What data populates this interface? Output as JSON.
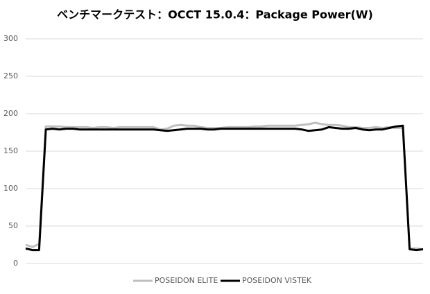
{
  "chart_data": {
    "type": "line",
    "title": "ベンチマークテスト：OCCT 15.0.4：Package Power(W)",
    "categories": [
      null,
      null,
      null,
      null,
      null,
      null,
      null,
      null,
      null,
      null,
      null,
      null,
      null,
      null,
      null,
      null,
      null,
      null,
      null,
      null,
      null,
      null,
      null,
      null,
      null,
      null,
      null,
      null,
      null,
      null,
      null,
      null,
      null,
      null,
      null,
      null,
      null,
      null,
      null,
      null,
      null,
      null,
      null,
      null,
      null,
      null,
      null,
      null,
      null,
      null,
      null,
      null,
      null,
      null,
      null,
      null,
      null,
      null,
      null,
      null
    ],
    "series": [
      {
        "name": "POSEIDON ELITE",
        "color": "#bfbfbf",
        "values": [
          25,
          22,
          26,
          183,
          183,
          183,
          182,
          182,
          182,
          182,
          181,
          182,
          182,
          181,
          182,
          182,
          182,
          182,
          182,
          182,
          179,
          180,
          184,
          185,
          184,
          184,
          182,
          181,
          181,
          181,
          182,
          182,
          182,
          182,
          183,
          183,
          184,
          184,
          184,
          184,
          184,
          185,
          186,
          188,
          186,
          185,
          185,
          184,
          182,
          182,
          181,
          181,
          182,
          181,
          182,
          181,
          181,
          20,
          20,
          19
        ]
      },
      {
        "name": "POSEIDON VISTEK",
        "color": "#000000",
        "values": [
          20,
          18,
          18,
          179,
          180,
          179,
          180,
          180,
          179,
          179,
          179,
          179,
          179,
          179,
          179,
          179,
          179,
          179,
          179,
          179,
          178,
          177,
          178,
          179,
          180,
          180,
          180,
          179,
          179,
          180,
          180,
          180,
          180,
          180,
          180,
          180,
          180,
          180,
          180,
          180,
          180,
          179,
          177,
          178,
          179,
          182,
          181,
          180,
          180,
          181,
          179,
          178,
          179,
          179,
          181,
          183,
          184,
          19,
          18,
          19
        ]
      }
    ],
    "ylim": [
      0,
      300
    ],
    "yticks": [
      0,
      50,
      100,
      150,
      200,
      250,
      300
    ],
    "grid": true
  }
}
